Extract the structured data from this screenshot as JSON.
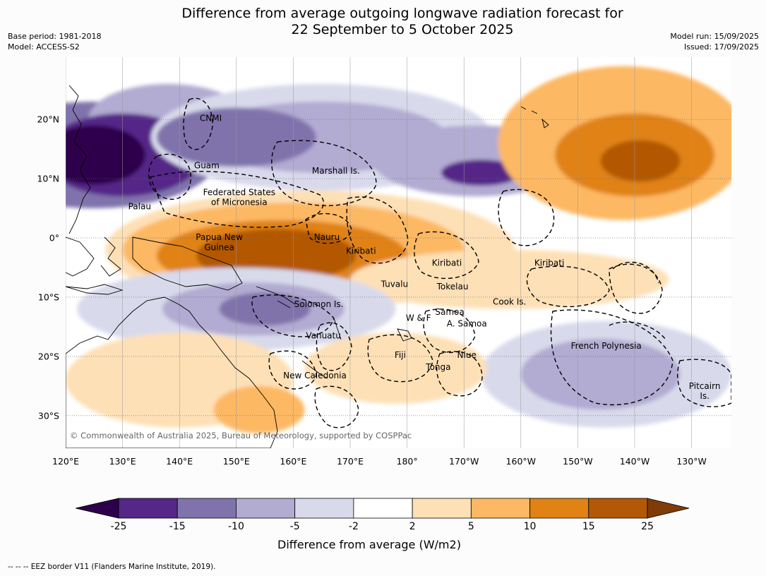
{
  "title_line1": "Difference from average outgoing longwave radiation forecast for",
  "title_line2": "22 September to 5 October 2025",
  "meta": {
    "base_period": "Base period: 1981-2018",
    "model": "Model: ACCESS-S2",
    "model_run": "Model run: 15/09/2025",
    "issued": "Issued: 17/09/2025"
  },
  "copyright": "© Commonwealth of Australia 2025, Bureau of Meteorology, supported by COSPPac",
  "map": {
    "lon_ticks": [
      {
        "lon": 120,
        "label": "120°E"
      },
      {
        "lon": 130,
        "label": "130°E"
      },
      {
        "lon": 140,
        "label": "140°E"
      },
      {
        "lon": 150,
        "label": "150°E"
      },
      {
        "lon": 160,
        "label": "160°E"
      },
      {
        "lon": 170,
        "label": "170°E"
      },
      {
        "lon": 180,
        "label": "180°"
      },
      {
        "lon": 190,
        "label": "170°W"
      },
      {
        "lon": 200,
        "label": "160°W"
      },
      {
        "lon": 210,
        "label": "150°W"
      },
      {
        "lon": 220,
        "label": "140°W"
      },
      {
        "lon": 230,
        "label": "130°W"
      }
    ],
    "lat_ticks": [
      {
        "lat": 20,
        "label": "20°N"
      },
      {
        "lat": 10,
        "label": "10°N"
      },
      {
        "lat": 0,
        "label": "0°"
      },
      {
        "lat": -10,
        "label": "10°S"
      },
      {
        "lat": -20,
        "label": "20°S"
      },
      {
        "lat": -30,
        "label": "30°S"
      }
    ],
    "region_labels": [
      {
        "text": "CNMI",
        "lon": 145.5,
        "lat": 20.2
      },
      {
        "text": "Guam",
        "lon": 144.8,
        "lat": 12.2
      },
      {
        "text": "Marshall Is.",
        "lon": 167.5,
        "lat": 11.3
      },
      {
        "text": "Federated States",
        "lon": 150.5,
        "lat": 7.7
      },
      {
        "text": "of Micronesia",
        "lon": 150.5,
        "lat": 6.0
      },
      {
        "text": "Palau",
        "lon": 133.0,
        "lat": 5.3
      },
      {
        "text": "Papua New",
        "lon": 147.0,
        "lat": 0.1
      },
      {
        "text": "Guinea",
        "lon": 147.0,
        "lat": -1.6
      },
      {
        "text": "Nauru",
        "lon": 165.9,
        "lat": 0.1
      },
      {
        "text": "Kiribati",
        "lon": 171.9,
        "lat": -2.2
      },
      {
        "text": "Kiribati",
        "lon": 187.0,
        "lat": -4.2
      },
      {
        "text": "Kiribati",
        "lon": 205.0,
        "lat": -4.2
      },
      {
        "text": "Tuvalu",
        "lon": 177.8,
        "lat": -7.8
      },
      {
        "text": "Tokelau",
        "lon": 188.0,
        "lat": -8.2
      },
      {
        "text": "Cook Is.",
        "lon": 198.0,
        "lat": -10.8
      },
      {
        "text": "Solomon Is.",
        "lon": 164.5,
        "lat": -11.2
      },
      {
        "text": "Samoa",
        "lon": 187.5,
        "lat": -12.5
      },
      {
        "text": "W & F",
        "lon": 182.0,
        "lat": -13.5
      },
      {
        "text": "A. Samoa",
        "lon": 190.5,
        "lat": -14.5
      },
      {
        "text": "Vanuatu",
        "lon": 165.3,
        "lat": -16.5
      },
      {
        "text": "French Polynesia",
        "lon": 215.0,
        "lat": -18.2
      },
      {
        "text": "Fiji",
        "lon": 178.8,
        "lat": -19.8
      },
      {
        "text": "Niue",
        "lon": 190.5,
        "lat": -19.8
      },
      {
        "text": "Tonga",
        "lon": 185.5,
        "lat": -21.8
      },
      {
        "text": "New Caledonia",
        "lon": 163.8,
        "lat": -23.2
      },
      {
        "text": "Pitcairn",
        "lon": 232.3,
        "lat": -25.0
      },
      {
        "text": "Is.",
        "lon": 232.3,
        "lat": -26.7
      }
    ],
    "anomaly_blobs": [
      {
        "lon": 125,
        "lat": 14,
        "rx": 22,
        "ry": 9,
        "category": "-15 to -10"
      },
      {
        "lon": 138,
        "lat": 20,
        "rx": 14,
        "ry": 6,
        "category": "-10 to -5"
      },
      {
        "lon": 130,
        "lat": 14,
        "rx": 14,
        "ry": 7,
        "category": "-25 to -15"
      },
      {
        "lon": 125,
        "lat": 14,
        "rx": 9,
        "ry": 5,
        "category": "< -25"
      },
      {
        "lon": 165,
        "lat": 17,
        "rx": 30,
        "ry": 9,
        "category": "-5 to -2"
      },
      {
        "lon": 165,
        "lat": 17,
        "rx": 22,
        "ry": 6,
        "category": "-10 to -5"
      },
      {
        "lon": 150,
        "lat": 17,
        "rx": 14,
        "ry": 5,
        "category": "-15 to -10"
      },
      {
        "lon": 192,
        "lat": 13,
        "rx": 18,
        "ry": 6,
        "category": "-10 to -5"
      },
      {
        "lon": 193,
        "lat": 11,
        "rx": 7,
        "ry": 2.2,
        "category": "-25 to -15"
      },
      {
        "lon": 218,
        "lat": 16,
        "rx": 22,
        "ry": 13,
        "category": "5 to 10"
      },
      {
        "lon": 220,
        "lat": 14,
        "rx": 14,
        "ry": 7,
        "category": "10 to 15"
      },
      {
        "lon": 221,
        "lat": 13,
        "rx": 7,
        "ry": 3.5,
        "category": "15 to 25"
      },
      {
        "lon": 163,
        "lat": -2,
        "rx": 36,
        "ry": 10,
        "category": "2 to 5"
      },
      {
        "lon": 160,
        "lat": -2,
        "rx": 30,
        "ry": 8,
        "category": "5 to 10"
      },
      {
        "lon": 158,
        "lat": -3,
        "rx": 22,
        "ry": 6,
        "category": "10 to 15"
      },
      {
        "lon": 157,
        "lat": -3,
        "rx": 14,
        "ry": 4.5,
        "category": "15 to 25"
      },
      {
        "lon": 198,
        "lat": -7,
        "rx": 28,
        "ry": 5,
        "category": "2 to 5"
      },
      {
        "lon": 150,
        "lat": -12,
        "rx": 28,
        "ry": 7,
        "category": "-5 to -2"
      },
      {
        "lon": 153,
        "lat": -12,
        "rx": 16,
        "ry": 4.5,
        "category": "-10 to -5"
      },
      {
        "lon": 155,
        "lat": -12,
        "rx": 8,
        "ry": 2.8,
        "category": "-15 to -10"
      },
      {
        "lon": 215,
        "lat": -23,
        "rx": 22,
        "ry": 9,
        "category": "-5 to -2"
      },
      {
        "lon": 214,
        "lat": -23,
        "rx": 14,
        "ry": 6,
        "category": "-10 to -5"
      },
      {
        "lon": 178,
        "lat": -22,
        "rx": 16,
        "ry": 6,
        "category": "2 to 5"
      },
      {
        "lon": 140,
        "lat": -24,
        "rx": 20,
        "ry": 8,
        "category": "2 to 5"
      },
      {
        "lon": 154,
        "lat": -29,
        "rx": 8,
        "ry": 4,
        "category": "5 to 10"
      }
    ]
  },
  "colorbar": {
    "colors": [
      "#2d004b",
      "#542788",
      "#8073ac",
      "#b2abd2",
      "#d8daeb",
      "#ffffff",
      "#fee0b6",
      "#fdb863",
      "#e08214",
      "#b35806",
      "#7f3b08"
    ],
    "labels": [
      "-25",
      "-15",
      "-10",
      "-5",
      "-2",
      "2",
      "5",
      "10",
      "15",
      "25"
    ],
    "category_colors": {
      "< -25": "#2d004b",
      "-25 to -15": "#542788",
      "-15 to -10": "#8073ac",
      "-10 to -5": "#b2abd2",
      "-5 to -2": "#d8daeb",
      "2 to 5": "#fee0b6",
      "5 to 10": "#fdb863",
      "10 to 15": "#e08214",
      "15 to 25": "#b35806",
      "> 25": "#7f3b08"
    },
    "title": "Difference from average (W/m2)"
  },
  "footer": "--  --  -- EEZ border V11 (Flanders Marine Institute, 2019)."
}
